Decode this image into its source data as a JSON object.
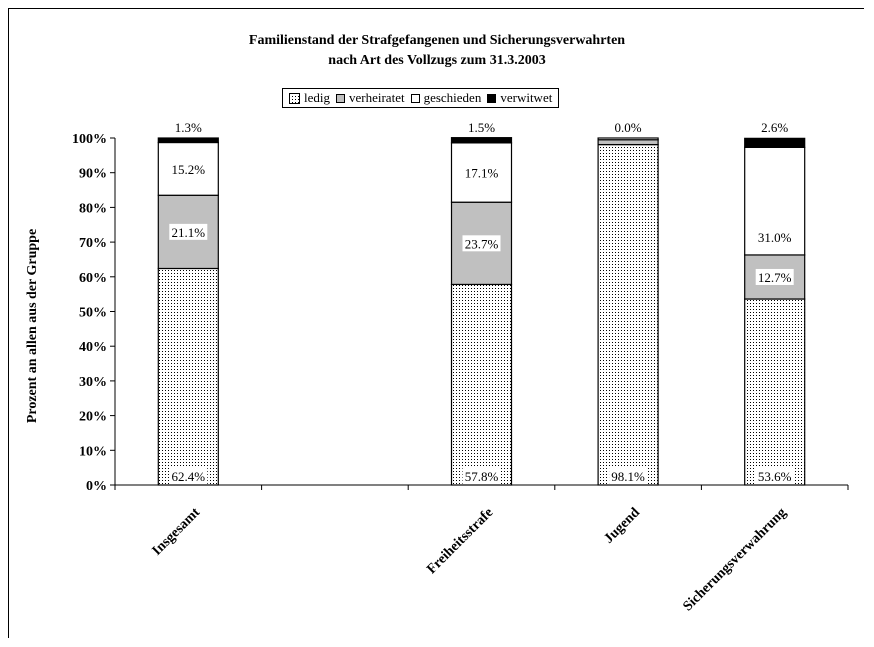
{
  "chart_data": {
    "type": "bar",
    "stacked": true,
    "percent_stacked": true,
    "title": "Familienstand der Strafgefangenen und Sicherungsverwahrten",
    "subtitle": "nach Art des Vollzugs zum 31.3.2003",
    "xlabel": "",
    "ylabel": "Prozent an allen aus der Gruppe",
    "ylim": [
      0,
      100
    ],
    "yticks": [
      "0%",
      "10%",
      "20%",
      "30%",
      "40%",
      "50%",
      "60%",
      "70%",
      "80%",
      "90%",
      "100%"
    ],
    "categories": [
      "Insgesamt",
      "",
      "Freiheitsstrafe",
      "Jugend",
      "Sicherungsverwahrung"
    ],
    "legend_position": "top",
    "series": [
      {
        "name": "ledig",
        "color": "#ffffff",
        "pattern": "dots",
        "values": [
          62.4,
          null,
          57.8,
          98.1,
          53.6
        ],
        "labels": [
          "62.4%",
          "",
          "57.8%",
          "98.1%",
          "53.6%"
        ]
      },
      {
        "name": "verheiratet",
        "color": "#c0c0c0",
        "pattern": "solid",
        "values": [
          21.1,
          null,
          23.7,
          1.4,
          12.7
        ],
        "labels": [
          "21.1%",
          "",
          "23.7%",
          "",
          "12.7%"
        ]
      },
      {
        "name": "geschieden",
        "color": "#ffffff",
        "pattern": "solid",
        "values": [
          15.2,
          null,
          17.1,
          0.5,
          31.0
        ],
        "labels": [
          "15.2%",
          "",
          "17.1%",
          "",
          "31.0%"
        ]
      },
      {
        "name": "verwitwet",
        "color": "#000000",
        "pattern": "solid",
        "values": [
          1.3,
          null,
          1.5,
          0.0,
          2.6
        ],
        "labels": [
          "1.3%",
          "",
          "1.5%",
          "0.0%",
          "2.6%"
        ]
      }
    ]
  }
}
